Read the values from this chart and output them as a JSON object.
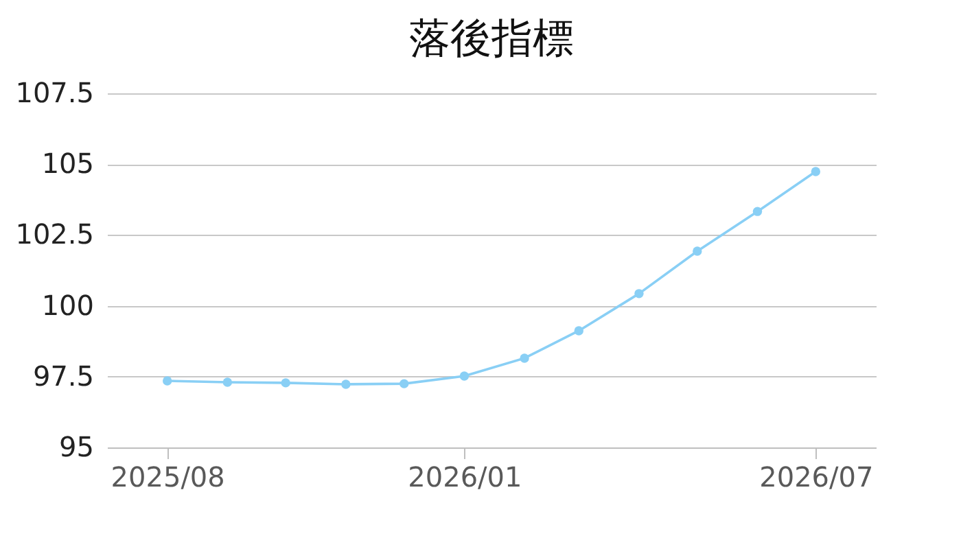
{
  "chart_data": {
    "type": "line",
    "title": "落後指標",
    "x": [
      "2025-08",
      "2025-09",
      "2025-10",
      "2025-11",
      "2025-12",
      "2026-01",
      "2026-02",
      "2026-03",
      "2026-04",
      "2026-05",
      "2026-06",
      "2026-07"
    ],
    "series": [
      {
        "color": "#89cff5",
        "values": [
          97.35,
          97.3,
          97.28,
          97.23,
          97.25,
          97.52,
          98.15,
          99.12,
          100.43,
          101.93,
          103.33,
          104.74
        ]
      }
    ],
    "xlim": [
      "2025-07",
      "2026-08"
    ],
    "xticks": [
      {
        "value": "2025-08",
        "label": "2025/08"
      },
      {
        "value": "2026-01",
        "label": "2026/01"
      },
      {
        "value": "2026-07",
        "label": "2026/07"
      }
    ],
    "ylim": [
      95,
      107.5
    ],
    "yticks": [
      95,
      97.5,
      100,
      102.5,
      105,
      107.5
    ],
    "grid": "y",
    "marker": "circle",
    "line_style": "solid"
  }
}
